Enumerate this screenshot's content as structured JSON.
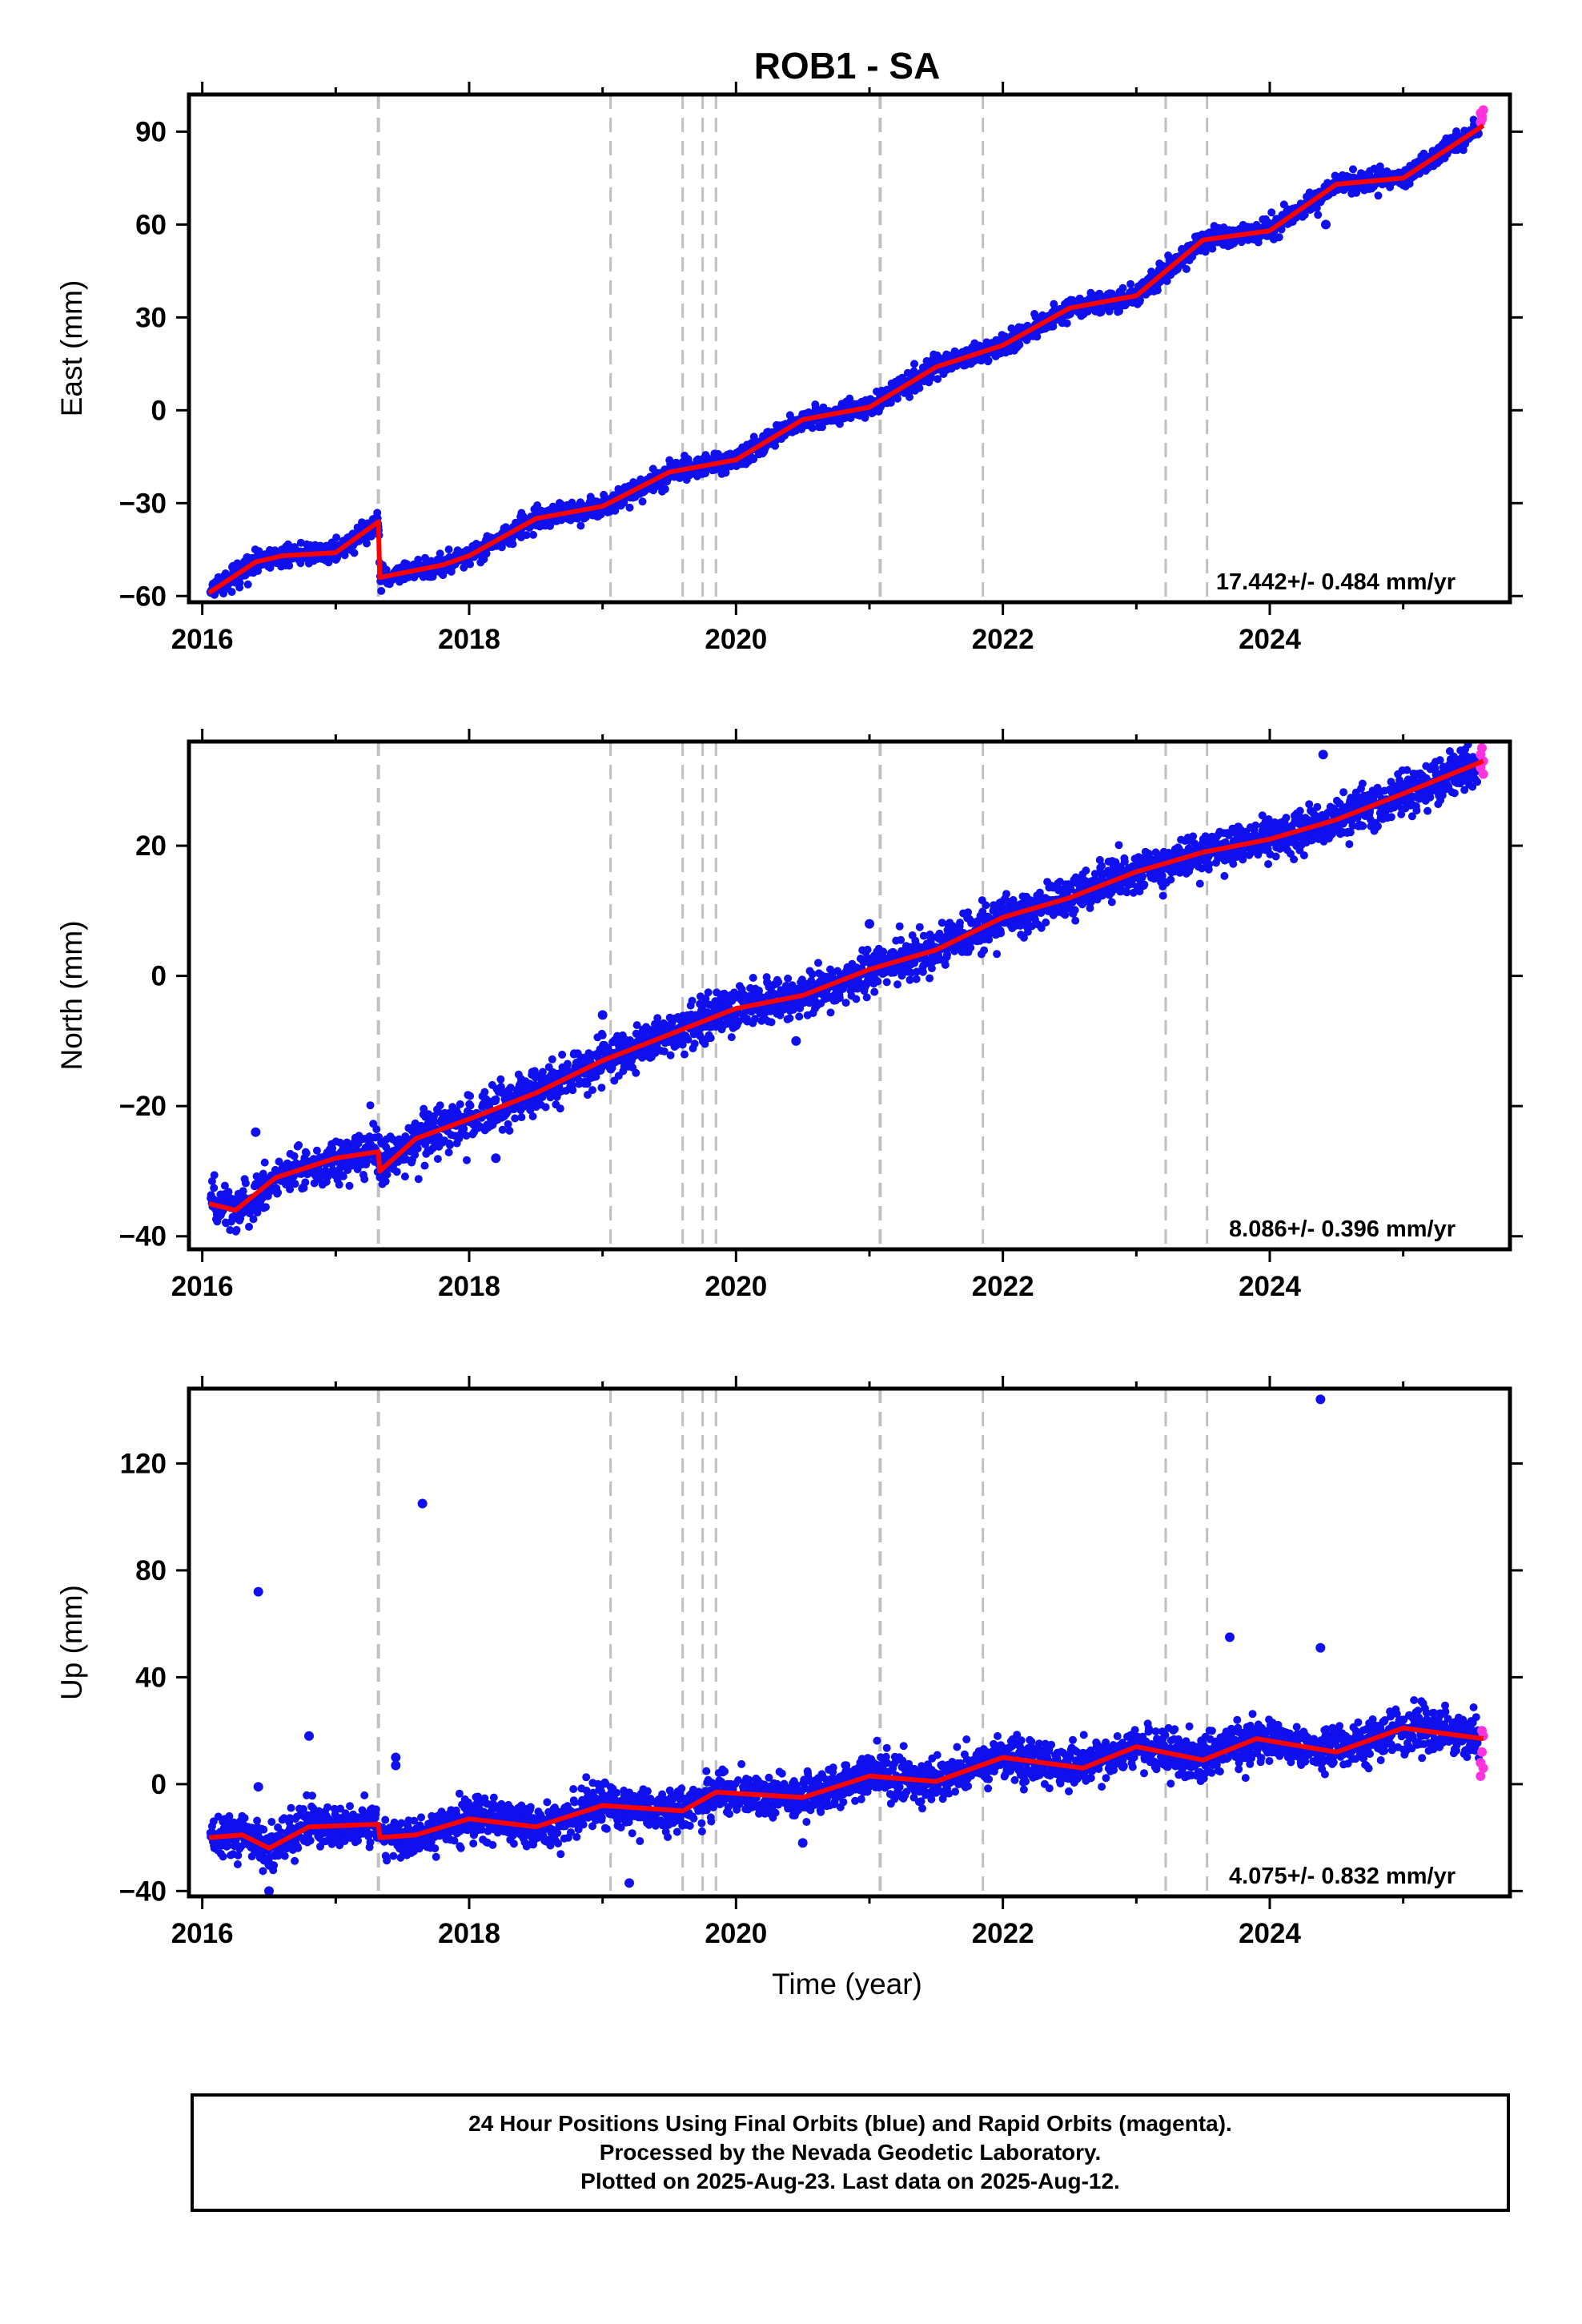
{
  "title": "ROB1 - SA",
  "x_axis": {
    "label": "Time (year)",
    "range": [
      2015.9,
      2025.8
    ],
    "ticks": [
      "2016",
      "2018",
      "2020",
      "2022",
      "2024"
    ]
  },
  "event_lines": [
    2017.32,
    2019.06,
    2019.6,
    2019.75,
    2019.85,
    2021.08,
    2021.85,
    2023.22,
    2023.53
  ],
  "colors": {
    "final": "#1010ee",
    "rapid": "#ff33dd",
    "model": "#ff0000",
    "events": "#c0c0c0",
    "frame": "#000000"
  },
  "caption": [
    "24 Hour Positions Using Final Orbits (blue) and Rapid Orbits (magenta).",
    "Processed by the Nevada Geodetic Laboratory.",
    "Plotted on 2025-Aug-23. Last data on 2025-Aug-12."
  ],
  "chart_data": [
    {
      "type": "scatter",
      "component": "east",
      "ylabel": "East (mm)",
      "ylim": [
        -62,
        102
      ],
      "yticks": [
        "-60",
        "-30",
        "0",
        "30",
        "60",
        "90"
      ],
      "ytick_values": [
        -60,
        -30,
        0,
        30,
        60,
        90
      ],
      "rate_text": "17.442+/- 0.484 mm/yr",
      "noise": 1.6,
      "outliers": [
        [
          2024.42,
          60
        ]
      ],
      "rapid_points": [
        [
          2025.58,
          93
        ],
        [
          2025.58,
          96
        ],
        [
          2025.59,
          94
        ],
        [
          2025.6,
          97
        ],
        [
          2025.59,
          95
        ]
      ],
      "series": [
        {
          "x": [
            2016.05,
            2016.4,
            2016.6,
            2017.0,
            2017.32,
            2017.33,
            2017.8,
            2018.0,
            2018.5,
            2019.0,
            2019.5,
            2020.0,
            2020.5,
            2021.0,
            2021.5,
            2022.0,
            2022.5,
            2023.0,
            2023.5,
            2024.0,
            2024.5,
            2025.0,
            2025.6
          ],
          "y": [
            -59,
            -49,
            -47,
            -46,
            -36,
            -54,
            -50,
            -47,
            -35,
            -31,
            -20,
            -16,
            -3,
            1,
            14,
            21,
            33,
            37,
            55,
            58,
            73,
            75,
            92
          ]
        }
      ]
    },
    {
      "type": "scatter",
      "component": "north",
      "ylabel": "North (mm)",
      "ylim": [
        -42,
        36
      ],
      "yticks": [
        "-40",
        "-20",
        "0",
        "20"
      ],
      "ytick_values": [
        -40,
        -20,
        0,
        20
      ],
      "rate_text": "8.086+/- 0.396 mm/yr",
      "noise": 1.6,
      "outliers": [
        [
          2016.4,
          -24
        ],
        [
          2018.2,
          -28
        ],
        [
          2020.45,
          -10
        ],
        [
          2021.0,
          8
        ],
        [
          2024.4,
          34
        ],
        [
          2019.0,
          -6
        ]
      ],
      "rapid_points": [
        [
          2025.58,
          32
        ],
        [
          2025.58,
          34
        ],
        [
          2025.6,
          33
        ],
        [
          2025.59,
          35
        ],
        [
          2025.6,
          31
        ]
      ],
      "series": [
        {
          "x": [
            2016.05,
            2016.25,
            2016.55,
            2017.0,
            2017.32,
            2017.33,
            2017.6,
            2018.0,
            2018.5,
            2019.0,
            2019.5,
            2020.0,
            2020.5,
            2021.0,
            2021.5,
            2022.0,
            2022.5,
            2023.0,
            2023.5,
            2024.0,
            2024.5,
            2025.0,
            2025.6
          ],
          "y": [
            -35,
            -36,
            -31,
            -28,
            -27,
            -30,
            -25,
            -22,
            -18,
            -13,
            -9,
            -5,
            -3,
            1,
            4,
            9,
            12,
            16,
            19,
            21,
            24,
            28,
            33
          ]
        }
      ]
    },
    {
      "type": "scatter",
      "component": "up",
      "ylabel": "Up (mm)",
      "ylim": [
        -42,
        148
      ],
      "yticks": [
        "-40",
        "0",
        "40",
        "80",
        "120"
      ],
      "ytick_values": [
        -40,
        0,
        40,
        80,
        120
      ],
      "rate_text": "4.075+/- 0.832 mm/yr",
      "noise": 4.0,
      "outliers": [
        [
          2016.42,
          72
        ],
        [
          2016.42,
          -1
        ],
        [
          2016.8,
          18
        ],
        [
          2017.65,
          105
        ],
        [
          2017.45,
          10
        ],
        [
          2017.45,
          7
        ],
        [
          2019.2,
          -37
        ],
        [
          2020.5,
          -22
        ],
        [
          2023.7,
          55
        ],
        [
          2024.38,
          144
        ],
        [
          2024.38,
          51
        ],
        [
          2016.5,
          -40
        ]
      ],
      "rapid_points": [
        [
          2025.58,
          3
        ],
        [
          2025.58,
          8
        ],
        [
          2025.59,
          12
        ],
        [
          2025.6,
          18
        ],
        [
          2025.59,
          20
        ],
        [
          2025.6,
          6
        ]
      ],
      "series": [
        {
          "x": [
            2016.05,
            2016.3,
            2016.5,
            2016.8,
            2017.32,
            2017.33,
            2017.6,
            2018.0,
            2018.5,
            2019.0,
            2019.6,
            2019.85,
            2020.5,
            2021.0,
            2021.5,
            2022.0,
            2022.6,
            2023.0,
            2023.5,
            2023.9,
            2024.5,
            2025.0,
            2025.6
          ],
          "y": [
            -20,
            -19,
            -24,
            -16,
            -15,
            -20,
            -19,
            -13,
            -16,
            -8,
            -10,
            -3,
            -5,
            3,
            1,
            10,
            6,
            14,
            9,
            17,
            12,
            21,
            17
          ]
        }
      ]
    }
  ]
}
